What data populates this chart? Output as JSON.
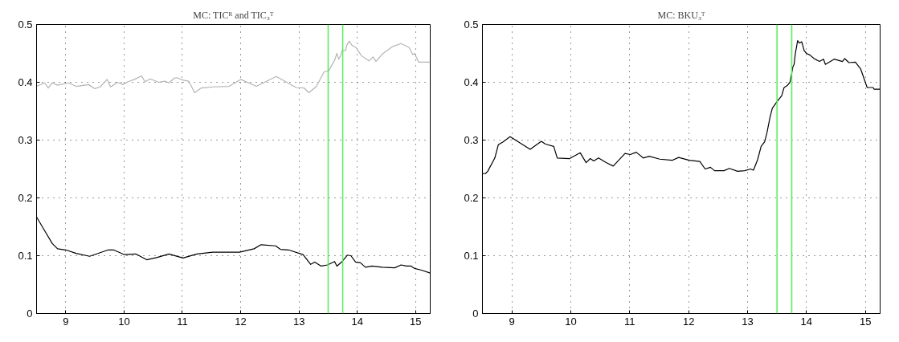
{
  "chart_data": [
    {
      "type": "line",
      "title": "MC: TICᴿ and TIC₃ᵀ",
      "xlim": [
        8.5,
        15.25
      ],
      "ylim": [
        0,
        0.5
      ],
      "xticks": [
        9,
        10,
        11,
        12,
        13,
        14,
        15
      ],
      "yticks": [
        0,
        0.1,
        0.2,
        0.3,
        0.4,
        0.5
      ],
      "grid": true,
      "line_style": "solid",
      "ref_lines": [
        {
          "axis": "x",
          "value": 13.5,
          "color": "#55ee55"
        },
        {
          "axis": "x",
          "value": 13.75,
          "color": "#55ee55"
        }
      ],
      "series": [
        {
          "color": "#b4b4b4",
          "x": [
            8.5,
            8.64,
            8.7,
            8.77,
            8.86,
            9.05,
            9.18,
            9.39,
            9.5,
            9.59,
            9.71,
            9.77,
            9.89,
            9.98,
            10.07,
            10.18,
            10.3,
            10.36,
            10.45,
            10.59,
            10.7,
            10.77,
            10.86,
            10.91,
            11.0,
            11.11,
            11.21,
            11.32,
            11.52,
            11.8,
            12.0,
            12.27,
            12.61,
            12.95,
            13.09,
            13.17,
            13.3,
            13.43,
            13.51,
            13.61,
            13.65,
            13.68,
            13.71,
            13.74,
            13.8,
            13.82,
            13.86,
            13.91,
            13.98,
            14.07,
            14.2,
            14.27,
            14.32,
            14.43,
            14.61,
            14.75,
            14.89,
            14.95,
            14.98,
            15.05,
            15.25
          ],
          "values": [
            0.393,
            0.399,
            0.39,
            0.399,
            0.395,
            0.399,
            0.393,
            0.396,
            0.389,
            0.392,
            0.405,
            0.392,
            0.4,
            0.396,
            0.401,
            0.405,
            0.411,
            0.401,
            0.406,
            0.4,
            0.402,
            0.399,
            0.407,
            0.408,
            0.404,
            0.402,
            0.382,
            0.39,
            0.392,
            0.393,
            0.405,
            0.393,
            0.41,
            0.391,
            0.39,
            0.382,
            0.393,
            0.418,
            0.42,
            0.438,
            0.45,
            0.44,
            0.445,
            0.455,
            0.455,
            0.464,
            0.471,
            0.464,
            0.46,
            0.446,
            0.437,
            0.444,
            0.436,
            0.449,
            0.462,
            0.467,
            0.46,
            0.448,
            0.45,
            0.435,
            0.435
          ]
        },
        {
          "color": "#000000",
          "x": [
            8.5,
            8.64,
            8.77,
            8.86,
            9.0,
            9.18,
            9.41,
            9.73,
            9.82,
            10.0,
            10.2,
            10.39,
            10.57,
            10.77,
            11.01,
            11.25,
            11.52,
            11.98,
            12.23,
            12.35,
            12.6,
            12.68,
            12.82,
            13.07,
            13.2,
            13.27,
            13.38,
            13.49,
            13.61,
            13.65,
            13.74,
            13.83,
            13.89,
            13.97,
            14.05,
            14.14,
            14.25,
            14.43,
            14.64,
            14.75,
            14.84,
            14.92,
            14.98,
            15.1,
            15.25
          ],
          "values": [
            0.167,
            0.143,
            0.121,
            0.112,
            0.11,
            0.104,
            0.099,
            0.11,
            0.11,
            0.102,
            0.103,
            0.093,
            0.097,
            0.103,
            0.096,
            0.103,
            0.106,
            0.106,
            0.112,
            0.119,
            0.117,
            0.111,
            0.11,
            0.102,
            0.085,
            0.089,
            0.082,
            0.084,
            0.09,
            0.082,
            0.09,
            0.101,
            0.1,
            0.089,
            0.088,
            0.08,
            0.082,
            0.08,
            0.079,
            0.084,
            0.082,
            0.082,
            0.078,
            0.075,
            0.07
          ]
        }
      ]
    },
    {
      "type": "line",
      "title": "MC: BKU₃ᵀ",
      "xlim": [
        8.5,
        15.25
      ],
      "ylim": [
        0,
        0.5
      ],
      "xticks": [
        9,
        10,
        11,
        12,
        13,
        14,
        15
      ],
      "yticks": [
        0,
        0.1,
        0.2,
        0.3,
        0.4,
        0.5
      ],
      "grid": true,
      "line_style": "solid",
      "ref_lines": [
        {
          "axis": "x",
          "value": 13.5,
          "color": "#55ee55"
        },
        {
          "axis": "x",
          "value": 13.75,
          "color": "#55ee55"
        }
      ],
      "series": [
        {
          "color": "#000000",
          "x": [
            8.5,
            8.55,
            8.59,
            8.71,
            8.77,
            8.85,
            8.97,
            9.31,
            9.5,
            9.57,
            9.71,
            9.77,
            9.98,
            10.16,
            10.26,
            10.33,
            10.39,
            10.47,
            10.6,
            10.72,
            10.92,
            11.01,
            11.11,
            11.23,
            11.33,
            11.51,
            11.72,
            11.83,
            12.01,
            12.19,
            12.28,
            12.37,
            12.44,
            12.6,
            12.69,
            12.83,
            12.95,
            13.05,
            13.1,
            13.17,
            13.23,
            13.29,
            13.33,
            13.38,
            13.42,
            13.49,
            13.58,
            13.62,
            13.67,
            13.72,
            13.77,
            13.79,
            13.81,
            13.85,
            13.88,
            13.92,
            13.96,
            14.0,
            14.06,
            14.13,
            14.22,
            14.29,
            14.32,
            14.47,
            14.61,
            14.65,
            14.72,
            14.83,
            14.92,
            15.03,
            15.13,
            15.15,
            15.25
          ],
          "values": [
            0.242,
            0.242,
            0.246,
            0.269,
            0.292,
            0.297,
            0.306,
            0.284,
            0.298,
            0.293,
            0.289,
            0.269,
            0.268,
            0.278,
            0.261,
            0.268,
            0.264,
            0.269,
            0.261,
            0.255,
            0.277,
            0.275,
            0.279,
            0.269,
            0.272,
            0.267,
            0.265,
            0.27,
            0.265,
            0.263,
            0.25,
            0.253,
            0.247,
            0.247,
            0.251,
            0.246,
            0.247,
            0.25,
            0.248,
            0.266,
            0.289,
            0.297,
            0.313,
            0.339,
            0.355,
            0.365,
            0.377,
            0.391,
            0.394,
            0.4,
            0.427,
            0.431,
            0.449,
            0.472,
            0.468,
            0.47,
            0.455,
            0.45,
            0.447,
            0.441,
            0.436,
            0.44,
            0.431,
            0.44,
            0.436,
            0.441,
            0.434,
            0.435,
            0.423,
            0.391,
            0.391,
            0.388,
            0.388
          ]
        }
      ]
    }
  ]
}
